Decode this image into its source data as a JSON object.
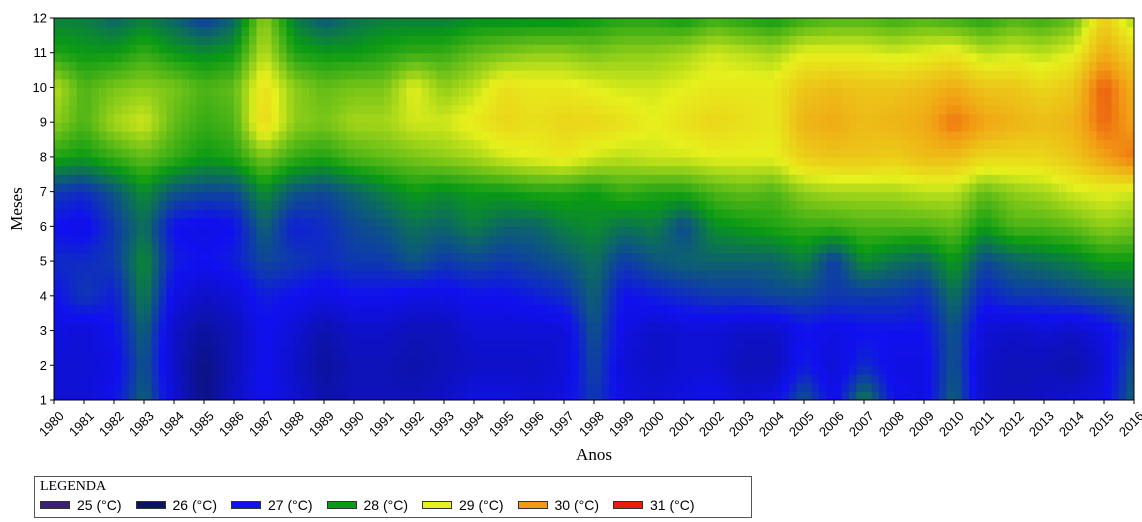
{
  "chart_data": {
    "type": "heatmap",
    "xlabel": "Anos",
    "ylabel": "Meses",
    "x": [
      1980,
      1981,
      1982,
      1983,
      1984,
      1985,
      1986,
      1987,
      1988,
      1989,
      1990,
      1991,
      1992,
      1993,
      1994,
      1995,
      1996,
      1997,
      1998,
      1999,
      2000,
      2001,
      2002,
      2003,
      2004,
      2005,
      2006,
      2007,
      2008,
      2009,
      2010,
      2011,
      2012,
      2013,
      2014,
      2015,
      2016
    ],
    "x_tick_labels": [
      "1980",
      "1981",
      "1982",
      "1983",
      "1984",
      "1985",
      "1986",
      "1987",
      "1988",
      "1989",
      "1990",
      "1991",
      "1992",
      "1993",
      "1994",
      "1995",
      "1996",
      "1997",
      "1998",
      "1999",
      "2000",
      "2001",
      "2002",
      "2003",
      "2004",
      "2005",
      "2006",
      "2007",
      "2008",
      "2009",
      "2010",
      "2011",
      "2012",
      "2013",
      "2014",
      "2015",
      "2016"
    ],
    "y": [
      1,
      2,
      3,
      4,
      5,
      6,
      7,
      8,
      9,
      10,
      11,
      12
    ],
    "y_tick_labels": [
      "1",
      "2",
      "3",
      "4",
      "5",
      "6",
      "7",
      "8",
      "9",
      "10",
      "11",
      "12"
    ],
    "xlim": [
      1980,
      2016
    ],
    "ylim": [
      1,
      12
    ],
    "grid": false,
    "legend_position": "bottom-left",
    "value_unit": "°C",
    "legend_title": "LEGENDA",
    "legend_entries": [
      {
        "label": "25 (°C)",
        "value": 25,
        "color": "#3b1f7a"
      },
      {
        "label": "26 (°C)",
        "value": 26,
        "color": "#0a1466"
      },
      {
        "label": "27 (°C)",
        "value": 27,
        "color": "#1010f0"
      },
      {
        "label": "28 (°C)",
        "value": 28,
        "color": "#0a9a14"
      },
      {
        "label": "29 (°C)",
        "value": 29,
        "color": "#e6f01c"
      },
      {
        "label": "30 (°C)",
        "value": 30,
        "color": "#f29a14"
      },
      {
        "label": "31 (°C)",
        "value": 31,
        "color": "#e61e0a"
      }
    ],
    "z": [
      [
        26.8,
        26.8,
        27.0,
        27.6,
        26.8,
        26.2,
        26.7,
        27.0,
        26.8,
        26.5,
        26.6,
        26.6,
        26.6,
        26.7,
        26.9,
        26.9,
        26.8,
        26.9,
        27.3,
        26.9,
        26.8,
        26.9,
        27.0,
        26.8,
        26.9,
        27.5,
        26.9,
        27.8,
        27.0,
        26.9,
        27.6,
        26.7,
        26.6,
        26.7,
        26.8,
        26.9,
        27.6
      ],
      [
        26.8,
        26.8,
        26.9,
        27.5,
        26.7,
        26.2,
        26.6,
        27.0,
        26.7,
        26.4,
        26.6,
        26.6,
        26.5,
        26.6,
        26.7,
        26.7,
        26.7,
        26.8,
        27.4,
        26.8,
        26.7,
        26.8,
        26.8,
        26.6,
        26.6,
        27.1,
        26.8,
        27.2,
        26.9,
        26.9,
        27.5,
        26.7,
        26.6,
        26.6,
        26.5,
        26.8,
        27.5
      ],
      [
        26.9,
        26.8,
        27.0,
        27.6,
        26.7,
        26.4,
        26.6,
        27.0,
        26.8,
        26.5,
        26.7,
        26.7,
        26.6,
        26.6,
        26.8,
        26.8,
        26.8,
        26.8,
        27.5,
        26.9,
        26.7,
        26.8,
        26.8,
        26.7,
        26.7,
        27.0,
        26.9,
        27.0,
        27.0,
        27.0,
        27.5,
        26.8,
        26.7,
        26.8,
        26.7,
        26.9,
        27.3
      ],
      [
        27.0,
        27.3,
        27.1,
        27.8,
        26.9,
        26.7,
        26.8,
        27.1,
        27.0,
        26.9,
        27.0,
        27.0,
        26.9,
        26.9,
        27.0,
        27.0,
        27.1,
        27.2,
        27.6,
        27.0,
        27.1,
        27.2,
        27.3,
        27.3,
        27.4,
        27.4,
        27.3,
        27.3,
        27.3,
        27.2,
        27.7,
        27.1,
        27.3,
        27.3,
        27.4,
        27.5,
        27.6
      ],
      [
        27.2,
        27.2,
        27.3,
        27.9,
        27.1,
        27.0,
        27.1,
        27.4,
        27.3,
        27.2,
        27.3,
        27.3,
        27.5,
        27.3,
        27.4,
        27.3,
        27.4,
        27.5,
        27.7,
        27.3,
        27.5,
        27.6,
        27.6,
        27.6,
        27.6,
        27.8,
        27.3,
        27.9,
        27.7,
        27.6,
        28.0,
        27.4,
        27.6,
        27.7,
        27.8,
        28.0,
        28.0
      ],
      [
        27.0,
        26.9,
        27.3,
        27.7,
        27.0,
        26.9,
        27.0,
        27.6,
        27.1,
        27.2,
        27.4,
        27.5,
        27.7,
        27.6,
        27.8,
        27.6,
        27.6,
        27.8,
        27.9,
        27.7,
        27.8,
        27.4,
        27.9,
        28.0,
        28.1,
        28.2,
        28.2,
        28.3,
        28.3,
        28.3,
        28.4,
        28.0,
        28.3,
        28.3,
        28.4,
        28.6,
        28.5
      ],
      [
        27.3,
        27.2,
        27.5,
        27.9,
        27.5,
        27.4,
        27.4,
        27.9,
        27.5,
        27.4,
        27.6,
        27.8,
        28.0,
        27.9,
        28.0,
        28.0,
        28.1,
        28.1,
        28.0,
        28.2,
        28.1,
        28.1,
        28.3,
        28.4,
        28.3,
        28.6,
        28.7,
        28.7,
        28.7,
        28.8,
        28.8,
        28.4,
        28.6,
        28.7,
        28.9,
        29.0,
        28.9
      ],
      [
        28.1,
        28.0,
        28.2,
        28.4,
        28.2,
        28.0,
        28.1,
        28.5,
        28.2,
        28.1,
        28.3,
        28.4,
        28.5,
        28.6,
        28.7,
        28.9,
        29.0,
        29.1,
        28.9,
        28.8,
        28.9,
        28.9,
        29.0,
        29.0,
        29.0,
        29.4,
        29.5,
        29.5,
        29.4,
        29.6,
        29.6,
        29.3,
        29.3,
        29.3,
        29.5,
        29.9,
        30.3
      ],
      [
        28.6,
        28.3,
        28.7,
        28.9,
        28.4,
        28.2,
        28.3,
        29.3,
        28.6,
        28.5,
        28.7,
        28.7,
        28.9,
        28.9,
        29.1,
        29.3,
        29.2,
        29.3,
        29.3,
        29.2,
        29.0,
        29.2,
        29.3,
        29.2,
        29.1,
        29.7,
        29.8,
        29.6,
        29.7,
        29.8,
        30.3,
        29.9,
        29.7,
        29.6,
        29.7,
        30.4,
        29.9
      ],
      [
        28.8,
        28.3,
        28.5,
        28.6,
        28.5,
        28.3,
        28.4,
        29.2,
        28.6,
        28.4,
        28.5,
        28.5,
        29.0,
        28.6,
        28.8,
        29.2,
        29.1,
        29.1,
        29.0,
        28.9,
        28.9,
        29.0,
        29.1,
        29.1,
        29.1,
        29.5,
        29.6,
        29.5,
        29.5,
        29.6,
        29.8,
        29.5,
        29.5,
        29.3,
        29.5,
        30.5,
        29.7
      ],
      [
        28.1,
        28.0,
        28.0,
        28.2,
        28.0,
        27.9,
        28.0,
        28.8,
        28.1,
        28.0,
        28.0,
        28.1,
        28.2,
        28.2,
        28.4,
        28.5,
        28.6,
        28.6,
        28.5,
        28.6,
        28.6,
        28.7,
        28.9,
        28.8,
        28.7,
        29.0,
        29.0,
        29.0,
        28.9,
        29.0,
        29.1,
        28.8,
        28.9,
        28.8,
        29.0,
        29.8,
        29.3
      ],
      [
        27.8,
        27.8,
        27.6,
        27.8,
        27.6,
        27.3,
        27.6,
        28.6,
        27.8,
        27.5,
        27.7,
        27.8,
        27.8,
        27.8,
        27.9,
        27.9,
        27.9,
        27.9,
        28.0,
        28.1,
        28.1,
        28.0,
        28.2,
        28.1,
        28.0,
        28.2,
        28.3,
        28.3,
        28.2,
        28.3,
        28.2,
        28.1,
        28.3,
        28.2,
        28.4,
        29.4,
        28.7
      ]
    ]
  }
}
